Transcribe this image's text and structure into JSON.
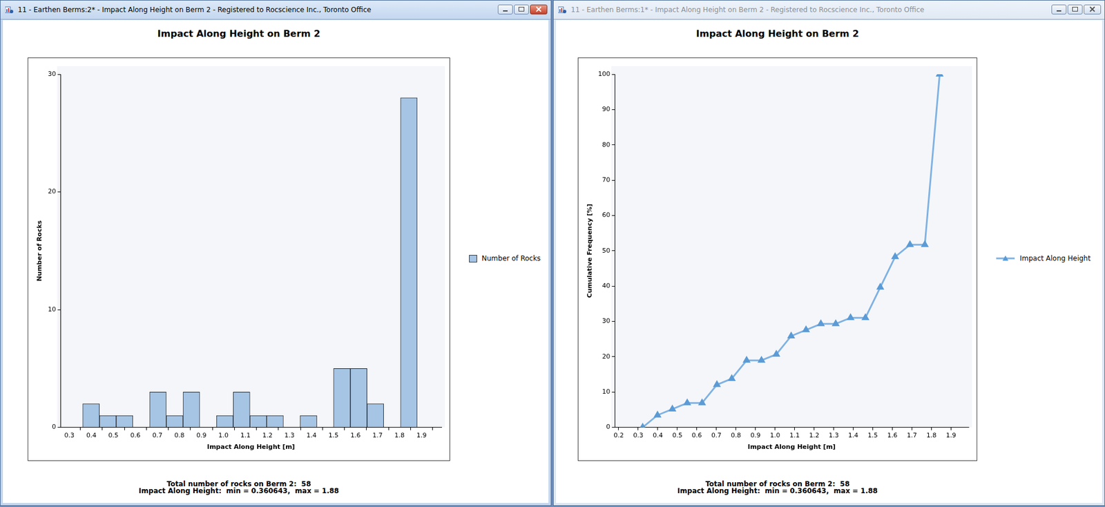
{
  "chart_data": [
    {
      "type": "histogram",
      "window_title": "11 - Earthen Berms:2* - Impact Along Height on Berm 2 - Registered to Rocscience Inc., Toronto Office",
      "title": "Impact Along Height on Berm 2",
      "x_label": "Impact Along Height [m]",
      "y_label": "Number of Rocks",
      "bins": [
        0.360643,
        0.4366,
        0.5126,
        0.5885,
        0.6645,
        0.7405,
        0.8164,
        0.8924,
        0.9684,
        1.0443,
        1.1203,
        1.1963,
        1.2722,
        1.3482,
        1.4242,
        1.5001,
        1.5761,
        1.6521,
        1.728,
        1.804,
        1.88
      ],
      "series": [
        {
          "name": "Number of Rocks",
          "color": "#a6c4e4",
          "values": [
            2,
            1,
            1,
            0,
            3,
            1,
            3,
            0,
            1,
            3,
            1,
            1,
            0,
            1,
            0,
            5,
            5,
            2,
            0,
            28
          ]
        }
      ],
      "xlim": [
        0.26,
        1.99
      ],
      "xticks": [
        0.3,
        0.4,
        0.5,
        0.6,
        0.7,
        0.8,
        0.9,
        {
          "value": 1,
          "label": "1.0"
        },
        1.1,
        1.2,
        1.3,
        1.4,
        1.5,
        1.6,
        1.7,
        1.8,
        1.9
      ],
      "ylim": [
        0,
        30
      ],
      "yticks": [
        0,
        10,
        20,
        30
      ],
      "grid": false,
      "legend": "right",
      "annotations": [
        "Total number of rocks on Berm 2:  58",
        "Impact Along Height:  min = 0.360643,  max = 1.88"
      ]
    },
    {
      "type": "line",
      "window_title": "11 - Earthen Berms:1* - Impact Along Height on Berm 2 - Registered to Rocscience Inc., Toronto Office",
      "title": "Impact Along Height on Berm 2",
      "x_label": "Impact Along Height [m]",
      "y_label": "Cumulative Frequency [%]",
      "x": [
        0.3227,
        0.3986,
        0.4746,
        0.5506,
        0.6265,
        0.7025,
        0.7785,
        0.8544,
        0.9304,
        1.0064,
        1.0823,
        1.1583,
        1.2343,
        1.3103,
        1.3862,
        1.4622,
        1.5382,
        1.6141,
        1.6901,
        1.7661,
        1.842
      ],
      "series": [
        {
          "name": "Impact Along Height",
          "color": "#7fb2e3",
          "marker": "triangle",
          "values": [
            0,
            3.45,
            5.17,
            6.9,
            6.9,
            12.07,
            13.79,
            18.97,
            18.97,
            20.69,
            25.86,
            27.59,
            29.31,
            29.31,
            31.03,
            31.03,
            39.66,
            48.28,
            51.72,
            51.72,
            100
          ]
        }
      ],
      "xlim": [
        0.18,
        1.99
      ],
      "xticks": [
        0.2,
        0.3,
        0.4,
        0.5,
        0.6,
        0.7,
        0.8,
        0.9,
        {
          "value": 1,
          "label": "1.0"
        },
        1.1,
        1.2,
        1.3,
        1.4,
        1.5,
        1.6,
        1.7,
        1.8,
        1.9
      ],
      "ylim": [
        0,
        100
      ],
      "yticks": [
        0,
        10,
        20,
        30,
        40,
        50,
        60,
        70,
        80,
        90,
        100
      ],
      "grid": false,
      "legend": "right",
      "annotations": [
        "Total number of rocks on Berm 2:  58",
        "Impact Along Height:  min = 0.360643,  max = 1.88"
      ]
    }
  ]
}
